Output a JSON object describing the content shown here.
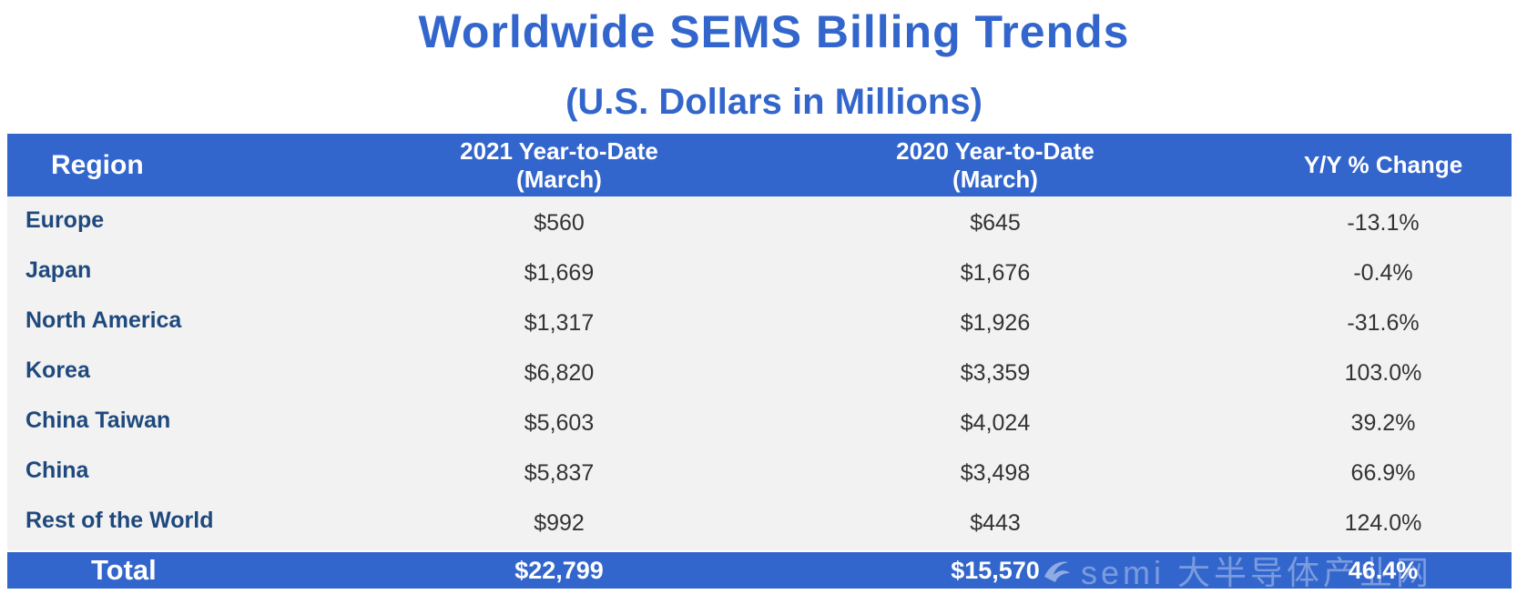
{
  "chart_data": {
    "type": "table",
    "title": "Worldwide SEMS Billing Trends",
    "subtitle": "(U.S. Dollars in Millions)",
    "columns": [
      {
        "line1": "Region",
        "line2": ""
      },
      {
        "line1": "2021 Year-to-Date",
        "line2": "(March)"
      },
      {
        "line1": "2020 Year-to-Date",
        "line2": "(March)"
      },
      {
        "line1": "Y/Y % Change",
        "line2": ""
      }
    ],
    "rows": [
      {
        "region": "Europe",
        "ytd_2021": "$560",
        "ytd_2020": "$645",
        "change": "-13.1%"
      },
      {
        "region": "Japan",
        "ytd_2021": "$1,669",
        "ytd_2020": "$1,676",
        "change": "-0.4%"
      },
      {
        "region": "North America",
        "ytd_2021": "$1,317",
        "ytd_2020": "$1,926",
        "change": "-31.6%"
      },
      {
        "region": "Korea",
        "ytd_2021": "$6,820",
        "ytd_2020": "$3,359",
        "change": "103.0%"
      },
      {
        "region": "China Taiwan",
        "ytd_2021": "$5,603",
        "ytd_2020": "$4,024",
        "change": "39.2%"
      },
      {
        "region": "China",
        "ytd_2021": "$5,837",
        "ytd_2020": "$3,498",
        "change": "66.9%"
      },
      {
        "region": "Rest of the World",
        "ytd_2021": "$992",
        "ytd_2020": "$443",
        "change": "124.0%"
      }
    ],
    "total": {
      "label": "Total",
      "ytd_2021": "$22,799",
      "ytd_2020": "$15,570",
      "change": "46.4%"
    }
  },
  "watermark": {
    "text": "semi 大半导体产业网"
  },
  "colors": {
    "accent": "#3366cc",
    "region_text": "#1f497d",
    "row_background": "#f2f2f2",
    "value_text": "#333333"
  }
}
